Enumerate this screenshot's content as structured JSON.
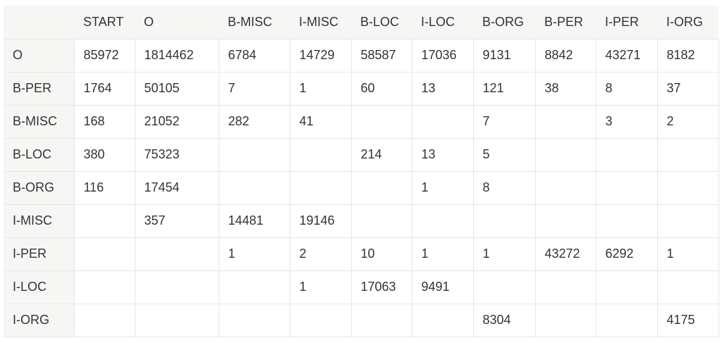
{
  "table": {
    "corner_label": "",
    "columns": [
      "START",
      "O",
      "B-MISC",
      "I-MISC",
      "B-LOC",
      "I-LOC",
      "B-ORG",
      "B-PER",
      "I-PER",
      "I-ORG"
    ],
    "rows": [
      {
        "label": "O",
        "cells": [
          "85972",
          "1814462",
          "6784",
          "14729",
          "58587",
          "17036",
          "9131",
          "8842",
          "43271",
          "8182"
        ]
      },
      {
        "label": "B-PER",
        "cells": [
          "1764",
          "50105",
          "7",
          "1",
          "60",
          "13",
          "121",
          "38",
          "8",
          "37"
        ]
      },
      {
        "label": "B-MISC",
        "cells": [
          "168",
          "21052",
          "282",
          "41",
          "",
          "",
          "7",
          "",
          "3",
          "2"
        ]
      },
      {
        "label": "B-LOC",
        "cells": [
          "380",
          "75323",
          "",
          "",
          "214",
          "13",
          "5",
          "",
          "",
          ""
        ]
      },
      {
        "label": "B-ORG",
        "cells": [
          "116",
          "17454",
          "",
          "",
          "",
          "1",
          "8",
          "",
          "",
          ""
        ]
      },
      {
        "label": "I-MISC",
        "cells": [
          "",
          "357",
          "14481",
          "19146",
          "",
          "",
          "",
          "",
          "",
          ""
        ]
      },
      {
        "label": "I-PER",
        "cells": [
          "",
          "",
          "1",
          "2",
          "10",
          "1",
          "1",
          "43272",
          "6292",
          "1"
        ]
      },
      {
        "label": "I-LOC",
        "cells": [
          "",
          "",
          "",
          "1",
          "17063",
          "9491",
          "",
          "",
          "",
          ""
        ]
      },
      {
        "label": "I-ORG",
        "cells": [
          "",
          "",
          "",
          "",
          "",
          "",
          "8304",
          "",
          "",
          "4175"
        ]
      }
    ]
  }
}
